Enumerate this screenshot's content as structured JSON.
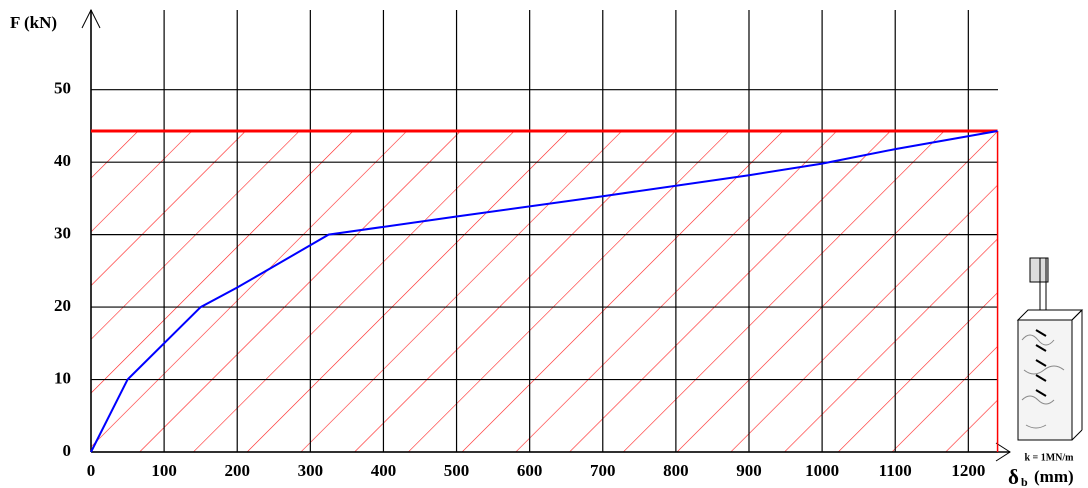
{
  "chart_data": {
    "type": "line",
    "y_label": "F  (kN)",
    "x_label_symbol": "δ",
    "x_label_subscript": "b",
    "x_label_unit": "(mm)",
    "annotation": "k = 1MN/m",
    "x": [
      0,
      50,
      150,
      200,
      325,
      500,
      700,
      900,
      1000,
      1100,
      1240
    ],
    "series": [
      {
        "color": "#0000ff",
        "values": [
          0,
          10,
          20,
          22.7,
          30,
          32.5,
          35.3,
          38.2,
          39.8,
          41.8,
          44.3
        ]
      }
    ],
    "limit_force": 44.3,
    "limit_displacement": 1240,
    "limit_color": "#ff0000",
    "xlim": [
      0,
      1257
    ],
    "ylim": [
      0,
      61
    ],
    "xticks": [
      0,
      100,
      200,
      300,
      400,
      500,
      600,
      700,
      800,
      900,
      1000,
      1100,
      1200
    ],
    "yticks": [
      0,
      10,
      20,
      30,
      40,
      50
    ],
    "grid": true
  }
}
